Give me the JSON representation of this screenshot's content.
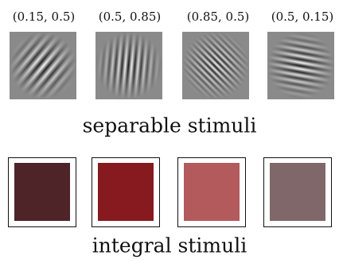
{
  "separable": {
    "labels": [
      "(0.15, 0.5)",
      "(0.5, 0.85)",
      "(0.85, 0.5)",
      "(0.5, 0.15)"
    ],
    "title": "separable stimuli"
  },
  "integral": {
    "title": "integral stimuli"
  }
}
